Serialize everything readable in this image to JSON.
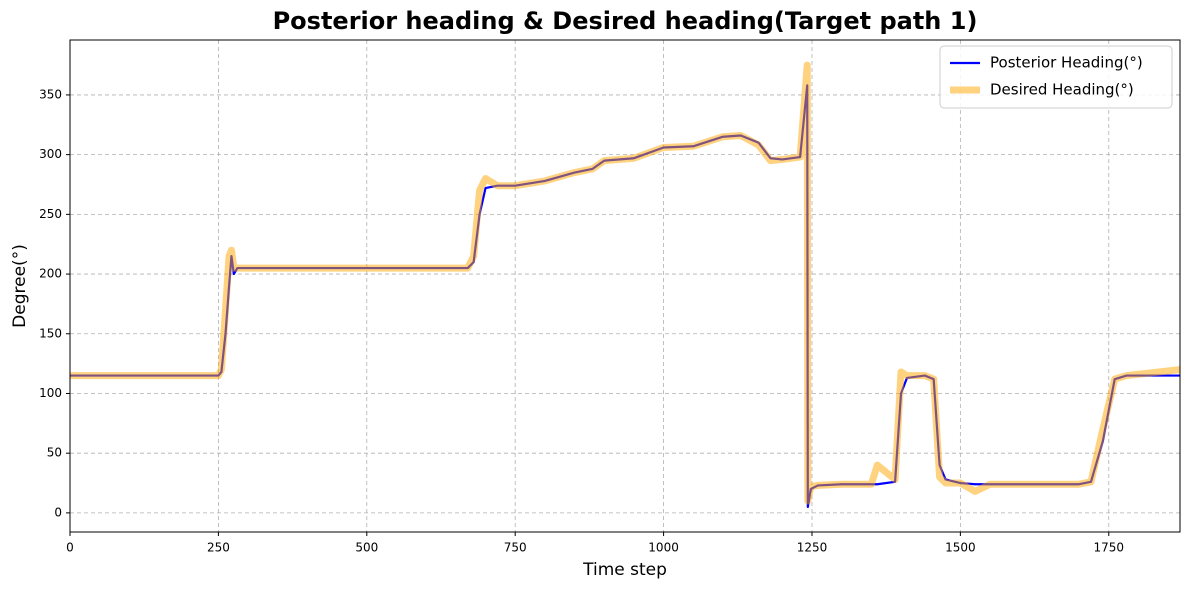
{
  "chart_data": {
    "type": "line",
    "title": "Posterior heading & Desired heading(Target path 1)",
    "xlabel": "Time step",
    "ylabel": "Degree(°)",
    "x": [
      0,
      100,
      200,
      250,
      255,
      262,
      268,
      272,
      276,
      282,
      300,
      400,
      500,
      600,
      670,
      680,
      690,
      700,
      720,
      750,
      800,
      850,
      880,
      900,
      950,
      1000,
      1050,
      1100,
      1130,
      1160,
      1180,
      1200,
      1230,
      1242,
      1243,
      1248,
      1260,
      1300,
      1350,
      1360,
      1390,
      1400,
      1410,
      1440,
      1455,
      1465,
      1475,
      1500,
      1525,
      1550,
      1600,
      1700,
      1720,
      1740,
      1760,
      1780,
      1870
    ],
    "series": [
      {
        "name": "Posterior Heading(°)",
        "color": "#0000ff",
        "values": [
          115,
          115,
          115,
          115,
          118,
          150,
          190,
          215,
          200,
          205,
          205,
          205,
          205,
          205,
          205,
          210,
          250,
          272,
          274,
          274,
          278,
          285,
          288,
          295,
          297,
          306,
          307,
          315,
          316,
          310,
          297,
          296,
          298,
          358,
          5,
          20,
          23,
          24,
          24,
          24,
          26,
          100,
          113,
          115,
          112,
          40,
          28,
          25,
          24,
          24,
          24,
          24,
          26,
          60,
          112,
          115,
          115
        ]
      },
      {
        "name": "Desired Heading(°)",
        "color": "#ffa500",
        "values": [
          115,
          115,
          115,
          115,
          120,
          170,
          215,
          220,
          205,
          205,
          205,
          205,
          205,
          205,
          205,
          215,
          270,
          280,
          274,
          274,
          278,
          285,
          288,
          295,
          297,
          306,
          307,
          315,
          316,
          308,
          295,
          296,
          298,
          375,
          10,
          22,
          23,
          24,
          24,
          40,
          28,
          118,
          115,
          115,
          112,
          30,
          25,
          25,
          18,
          24,
          24,
          24,
          26,
          70,
          112,
          115,
          120
        ]
      }
    ],
    "xlim": [
      0,
      1870
    ],
    "ylim": [
      -16,
      396
    ],
    "xticks": [
      0,
      250,
      500,
      750,
      1000,
      1250,
      1500,
      1750
    ],
    "yticks": [
      0,
      50,
      100,
      150,
      200,
      250,
      300,
      350
    ],
    "grid": true,
    "legend": "upper right"
  }
}
